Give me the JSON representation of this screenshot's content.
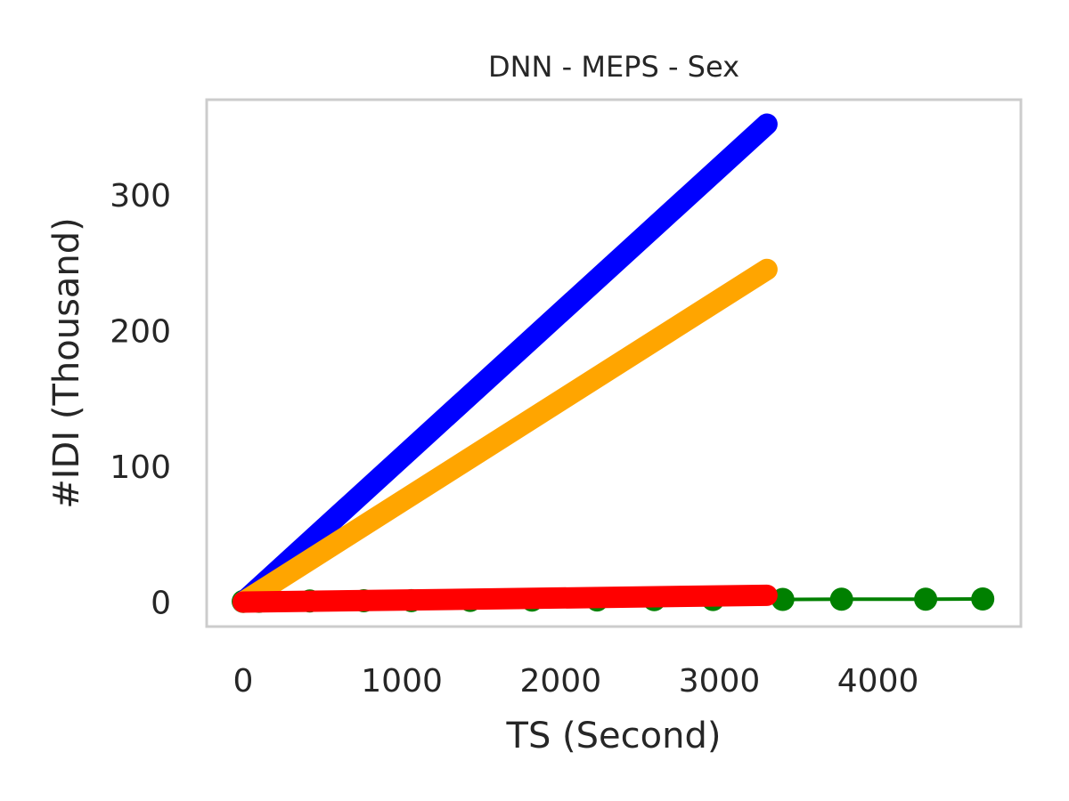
{
  "chart_data": {
    "type": "line",
    "title": "DNN - MEPS - Sex",
    "xlabel": "TS (Second)",
    "ylabel": "#IDI (Thousand)",
    "xlim": [
      -230,
      4900
    ],
    "ylim": [
      -18,
      370
    ],
    "xticks": [
      0,
      1000,
      2000,
      3000,
      4000
    ],
    "yticks": [
      0,
      100,
      200,
      300
    ],
    "xtick_labels": [
      "0",
      "1000",
      "2000",
      "3000",
      "4000"
    ],
    "ytick_labels": [
      "0",
      "100",
      "200",
      "300"
    ],
    "grid": false,
    "series": [
      {
        "color": "#008000",
        "style": "line-with-markers",
        "x": [
          0,
          100,
          420,
          760,
          1060,
          1430,
          1820,
          2230,
          2590,
          2960,
          3400,
          3770,
          4300,
          4660
        ],
        "y": [
          0.5,
          0.6,
          0.8,
          1.0,
          1.1,
          1.3,
          1.5,
          1.6,
          1.8,
          1.9,
          2.0,
          2.1,
          2.2,
          2.3
        ]
      },
      {
        "color": "#0000ff",
        "style": "thick",
        "x": [
          0,
          3300
        ],
        "y": [
          0,
          352
        ]
      },
      {
        "color": "#ffa500",
        "style": "thick",
        "x": [
          0,
          3300
        ],
        "y": [
          0,
          245
        ]
      },
      {
        "color": "#ff0000",
        "style": "thick",
        "x": [
          0,
          3300
        ],
        "y": [
          0,
          5
        ]
      }
    ]
  }
}
